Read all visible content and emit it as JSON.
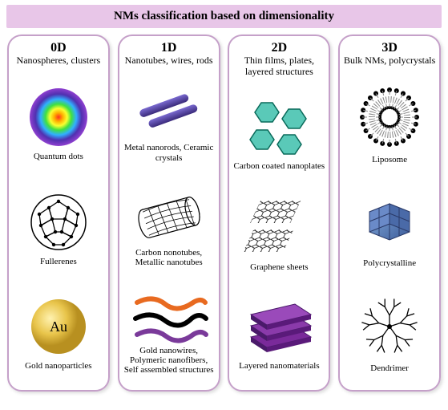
{
  "title": "NMs classification based on dimensionality",
  "title_bg": "#e8c6e8",
  "title_color": "#000000",
  "title_fontsize": 15,
  "border_color": "#c5a0c9",
  "columns": [
    {
      "heading": "0D",
      "subheading": "Nanospheres, clusters",
      "items": [
        {
          "label": "Quantum dots",
          "icon": "quantum-dots"
        },
        {
          "label": "Fullerenes",
          "icon": "fullerene"
        },
        {
          "label": "Gold nanoparticles",
          "icon": "gold-np"
        }
      ]
    },
    {
      "heading": "1D",
      "subheading": "Nanotubes, wires, rods",
      "items": [
        {
          "label": "Metal nanorods, Ceramic crystals",
          "icon": "nanorods"
        },
        {
          "label": "Carbon nonotubes, Metallic nanotubes",
          "icon": "nanotube"
        },
        {
          "label": "Gold nanowires, Polymeric nanofibers, Self assembled structures",
          "icon": "nanowires"
        }
      ]
    },
    {
      "heading": "2D",
      "subheading": "Thin films, plates, layered structures",
      "items": [
        {
          "label": "Carbon coated nanoplates",
          "icon": "nanoplates"
        },
        {
          "label": "Graphene sheets",
          "icon": "graphene"
        },
        {
          "label": "Layered nanomaterials",
          "icon": "layered"
        }
      ]
    },
    {
      "heading": "3D",
      "subheading": "Bulk NMs, polycrystals",
      "items": [
        {
          "label": "Liposome",
          "icon": "liposome"
        },
        {
          "label": "Polycrystalline",
          "icon": "polycrystal"
        },
        {
          "label": "Dendrimer",
          "icon": "dendrimer"
        }
      ]
    }
  ],
  "colors": {
    "quantum_gradient": [
      "#ff3020",
      "#ffae00",
      "#f8ff30",
      "#40e040",
      "#30b0ff",
      "#5030b0",
      "#9040d0"
    ],
    "fullerene_stroke": "#000000",
    "gold": "#e8c44a",
    "gold_dark": "#b89020",
    "nanorod": "#4a3a9a",
    "nanorod_light": "#7a6ad0",
    "nanotube_stroke": "#000000",
    "wire_orange": "#e86a20",
    "wire_black": "#000000",
    "wire_purple": "#7a3a9a",
    "plate_teal": "#5ac9b8",
    "plate_stroke": "#0a6a5a",
    "graphene_stroke": "#000000",
    "layered": "#7a2a9a",
    "layered_dark": "#4a1a6a",
    "liposome_stroke": "#000000",
    "polycrystal": "#5a8ac8",
    "polycrystal_dark": "#3a5a98",
    "dendrimer_stroke": "#000000"
  }
}
